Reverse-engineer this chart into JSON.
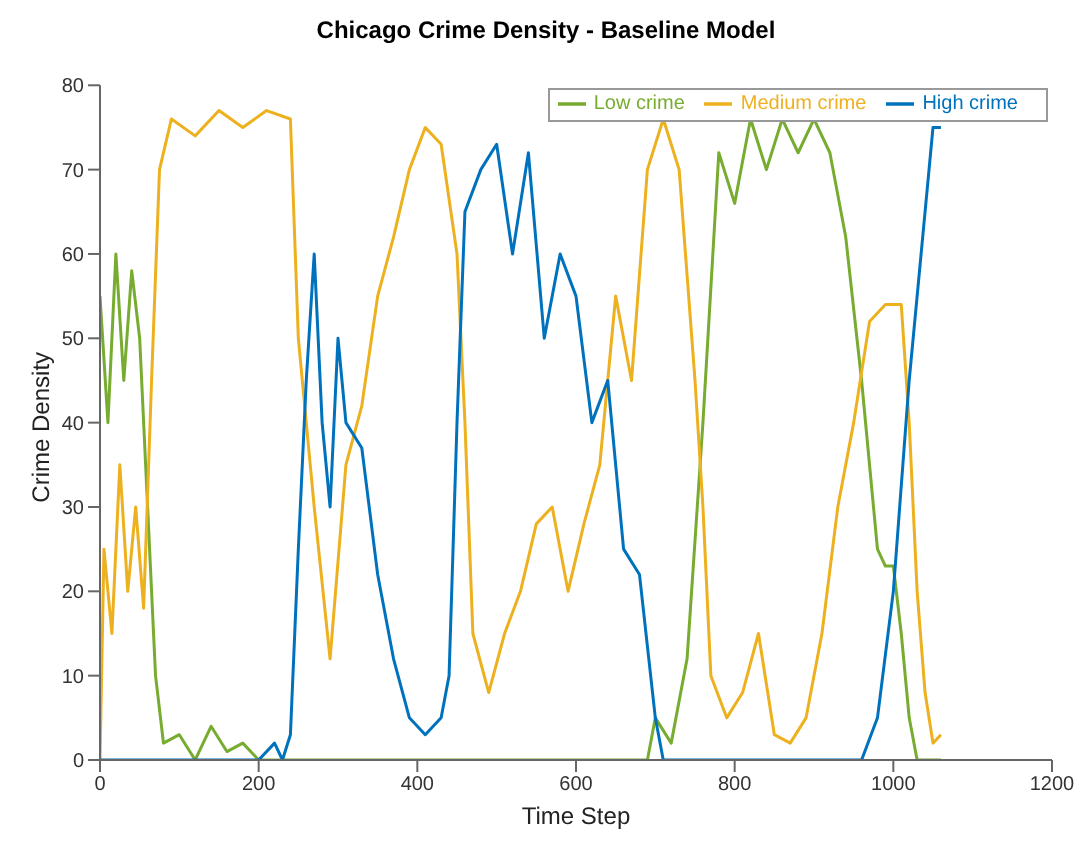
{
  "chart_data": {
    "type": "line",
    "title": "Chicago Crime Density - Baseline Model",
    "xlabel": "Time Step",
    "ylabel": "Crime Density",
    "xlim": [
      0,
      1200
    ],
    "xticks": [
      0,
      200,
      400,
      600,
      800,
      1000,
      1200
    ],
    "ylim": [
      0,
      80
    ],
    "yticks": [
      0,
      10,
      20,
      30,
      40,
      50,
      60,
      70,
      80
    ],
    "legend": "top right",
    "grid": false,
    "marker": "none",
    "line_style": "solid",
    "series": [
      {
        "name": "Low crime",
        "color": "#77ac30",
        "x": [
          0,
          10,
          20,
          30,
          40,
          50,
          60,
          70,
          80,
          100,
          120,
          140,
          160,
          180,
          200,
          240,
          300,
          400,
          500,
          600,
          690,
          700,
          720,
          740,
          760,
          780,
          800,
          820,
          840,
          860,
          880,
          900,
          920,
          940,
          960,
          980,
          990,
          1000,
          1010,
          1020,
          1030,
          1060
        ],
        "values": [
          55,
          40,
          60,
          45,
          58,
          50,
          30,
          10,
          2,
          3,
          0,
          4,
          1,
          2,
          0,
          0,
          0,
          0,
          0,
          0,
          0,
          5,
          2,
          12,
          40,
          72,
          66,
          76,
          70,
          76,
          72,
          76,
          72,
          62,
          45,
          25,
          23,
          23,
          15,
          5,
          0,
          0
        ]
      },
      {
        "name": "Medium crime",
        "color": "#edb120",
        "x": [
          0,
          5,
          15,
          25,
          35,
          45,
          55,
          65,
          75,
          90,
          120,
          150,
          180,
          210,
          240,
          250,
          270,
          290,
          310,
          330,
          350,
          370,
          390,
          410,
          430,
          450,
          460,
          470,
          490,
          510,
          530,
          550,
          570,
          590,
          610,
          630,
          650,
          670,
          690,
          710,
          730,
          750,
          760,
          770,
          790,
          810,
          830,
          850,
          870,
          890,
          910,
          930,
          950,
          970,
          990,
          1010,
          1020,
          1030,
          1040,
          1050,
          1060
        ],
        "values": [
          0,
          25,
          15,
          35,
          20,
          30,
          18,
          45,
          70,
          76,
          74,
          77,
          75,
          77,
          76,
          50,
          30,
          12,
          35,
          42,
          55,
          62,
          70,
          75,
          73,
          60,
          40,
          15,
          8,
          15,
          20,
          28,
          30,
          20,
          28,
          35,
          55,
          45,
          70,
          76,
          70,
          45,
          30,
          10,
          5,
          8,
          15,
          3,
          2,
          5,
          15,
          30,
          40,
          52,
          54,
          54,
          40,
          20,
          8,
          2,
          3
        ]
      },
      {
        "name": "High crime",
        "color": "#0072bd",
        "x": [
          0,
          100,
          200,
          220,
          230,
          240,
          250,
          260,
          270,
          280,
          290,
          300,
          310,
          330,
          350,
          370,
          390,
          410,
          430,
          440,
          450,
          460,
          480,
          500,
          520,
          540,
          560,
          580,
          600,
          620,
          640,
          660,
          680,
          700,
          710,
          800,
          900,
          960,
          980,
          1000,
          1020,
          1040,
          1050,
          1060
        ],
        "values": [
          0,
          0,
          0,
          2,
          0,
          3,
          25,
          45,
          60,
          40,
          30,
          50,
          40,
          37,
          22,
          12,
          5,
          3,
          5,
          10,
          40,
          65,
          70,
          73,
          60,
          72,
          50,
          60,
          55,
          40,
          45,
          25,
          22,
          5,
          0,
          0,
          0,
          0,
          5,
          20,
          45,
          65,
          75,
          75
        ]
      }
    ]
  }
}
